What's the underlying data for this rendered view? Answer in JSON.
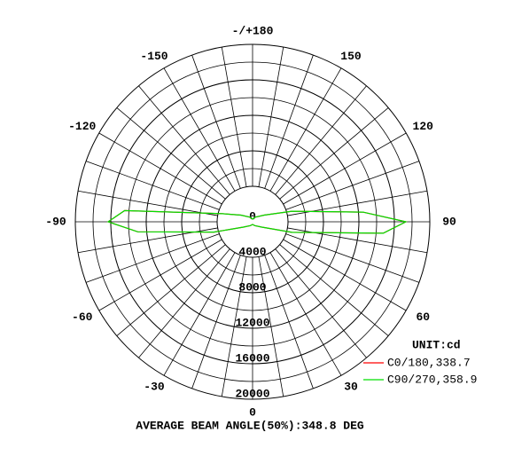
{
  "chart_data": {
    "type": "polar",
    "unit_label": "UNIT:cd",
    "footer": "AVERAGE BEAM ANGLE(50%):348.8 DEG",
    "rlim": [
      0,
      20000
    ],
    "rticks": [
      0,
      4000,
      8000,
      12000,
      16000,
      20000
    ],
    "thetaticks": [
      {
        "value": 180,
        "label": "-/+180"
      },
      150,
      120,
      90,
      60,
      30,
      0,
      -30,
      -60,
      -90,
      -120,
      -150
    ],
    "theta": [
      -180,
      -150,
      -120,
      -105,
      -95,
      -90,
      -85,
      -75,
      -60,
      -30,
      0,
      30,
      60,
      75,
      85,
      90,
      95,
      105,
      120,
      150,
      180
    ],
    "series": [
      {
        "name": "C0/180,338.7",
        "color": "#ff0000",
        "values": [
          300,
          600,
          1500,
          3500,
          14500,
          16300,
          13000,
          4500,
          1200,
          500,
          300,
          500,
          1200,
          4600,
          14800,
          17300,
          12500,
          4600,
          1500,
          600,
          300
        ]
      },
      {
        "name": "C90/270,358.9",
        "color": "#00e000",
        "values": [
          300,
          600,
          1500,
          3500,
          14500,
          16300,
          13000,
          4500,
          1200,
          500,
          300,
          500,
          1200,
          4600,
          14800,
          17300,
          12500,
          4600,
          1500,
          600,
          300
        ]
      }
    ]
  }
}
